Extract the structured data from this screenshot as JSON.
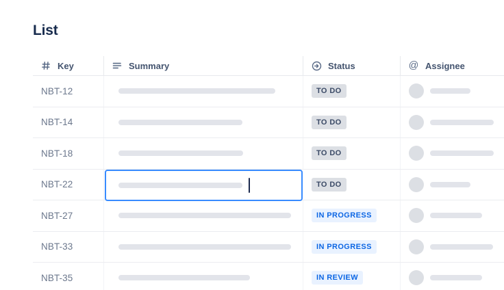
{
  "page": {
    "title": "List"
  },
  "table": {
    "columns": [
      {
        "id": "key",
        "label": "Key",
        "icon": "hash-icon"
      },
      {
        "id": "summary",
        "label": "Summary",
        "icon": "text-lines-icon"
      },
      {
        "id": "status",
        "label": "Status",
        "icon": "arrow-right-circle-icon"
      },
      {
        "id": "assignee",
        "label": "Assignee",
        "icon": "at-icon"
      }
    ],
    "rows": [
      {
        "key": "NBT-12",
        "status": "TO DO",
        "status_type": "todo",
        "summary_bar_width": 229,
        "assignee_bar_width": 59,
        "editing": false
      },
      {
        "key": "NBT-14",
        "status": "TO DO",
        "status_type": "todo",
        "summary_bar_width": 181,
        "assignee_bar_width": 93,
        "editing": false
      },
      {
        "key": "NBT-18",
        "status": "TO DO",
        "status_type": "todo",
        "summary_bar_width": 182,
        "assignee_bar_width": 93,
        "editing": false
      },
      {
        "key": "NBT-22",
        "status": "TO DO",
        "status_type": "todo",
        "summary_bar_width": 181,
        "assignee_bar_width": 59,
        "editing": true
      },
      {
        "key": "NBT-27",
        "status": "IN PROGRESS",
        "status_type": "inprogress",
        "summary_bar_width": 252,
        "assignee_bar_width": 76,
        "editing": false
      },
      {
        "key": "NBT-33",
        "status": "IN PROGRESS",
        "status_type": "inprogress",
        "summary_bar_width": 252,
        "assignee_bar_width": 92,
        "editing": false
      },
      {
        "key": "NBT-35",
        "status": "IN REVIEW",
        "status_type": "inreview",
        "summary_bar_width": 192,
        "assignee_bar_width": 76,
        "editing": false
      }
    ]
  },
  "colors": {
    "title_text": "#172B4D",
    "header_text": "#44546F",
    "key_text": "#6B778C",
    "badge_todo_bg": "#DCDFE4",
    "badge_todo_text": "#3B4A66",
    "badge_inprogress_bg": "#E9F2FF",
    "badge_inprogress_text": "#0C66E4",
    "badge_inreview_bg": "#E9F2FF",
    "badge_inreview_text": "#0C66E4",
    "edit_border": "#388BFF",
    "placeholder_bar": "#E2E4EA",
    "avatar_bg": "#DCDFE4",
    "row_border": "#EBECF0",
    "column_border": "#F2F3F6"
  }
}
